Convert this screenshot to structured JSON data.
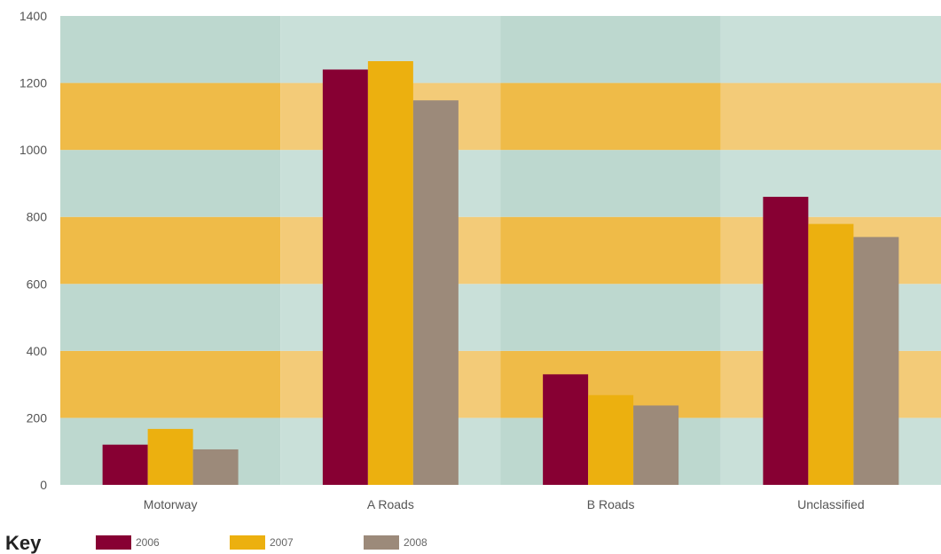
{
  "chart_data": {
    "type": "bar",
    "title": "",
    "xlabel": "",
    "ylabel": "",
    "ylim": [
      0,
      1400
    ],
    "yticks": [
      0,
      200,
      400,
      600,
      800,
      1000,
      1200,
      1400
    ],
    "categories": [
      "Motorway",
      "A Roads",
      "B Roads",
      "Unclassified"
    ],
    "series": [
      {
        "name": "2006",
        "values": [
          120,
          1240,
          330,
          860
        ],
        "color": "#870033"
      },
      {
        "name": "2007",
        "values": [
          167,
          1265,
          268,
          779
        ],
        "color": "#ecb00f"
      },
      {
        "name": "2008",
        "values": [
          106,
          1148,
          237,
          740
        ],
        "color": "#9c8a7a"
      }
    ],
    "legend": {
      "title": "Key",
      "position": "bottom-left"
    },
    "background": {
      "band_colors": [
        "#bdd8cf",
        "#efbb48"
      ],
      "alt_band_colors": [
        "#c9e0d9",
        "#f3cb78"
      ]
    }
  }
}
